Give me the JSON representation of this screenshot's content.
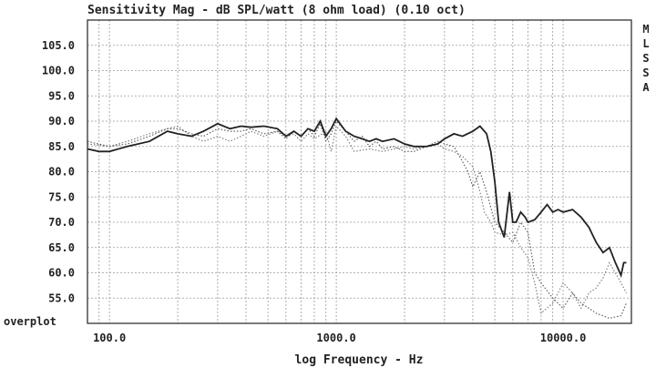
{
  "chart_data": {
    "type": "line",
    "title": "Sensitivity Mag - dB SPL/watt (8 ohm load) (0.10 oct)",
    "xlabel": "log Frequency - Hz",
    "ylabel": "",
    "x_scale": "log",
    "xlim": [
      80,
      20000
    ],
    "ylim": [
      50,
      110
    ],
    "x_ticks": [
      100,
      1000,
      10000
    ],
    "x_tick_labels": [
      "100.0",
      "1000.0",
      "10000.0"
    ],
    "y_ticks": [
      55,
      60,
      65,
      70,
      75,
      80,
      85,
      90,
      95,
      100,
      105
    ],
    "y_tick_labels": [
      "55.0",
      "60.0",
      "65.0",
      "70.0",
      "75.0",
      "80.0",
      "85.0",
      "90.0",
      "95.0",
      "100.0",
      "105.0"
    ],
    "grid": true,
    "side_label": "MLSSA",
    "corner_label": "overplot",
    "series": [
      {
        "style": "solid",
        "color": "#222222",
        "x": [
          80,
          90,
          100,
          120,
          150,
          180,
          200,
          230,
          260,
          300,
          340,
          380,
          420,
          480,
          550,
          600,
          650,
          700,
          750,
          800,
          850,
          900,
          950,
          1000,
          1100,
          1200,
          1300,
          1400,
          1500,
          1600,
          1800,
          2000,
          2200,
          2500,
          2800,
          3000,
          3300,
          3600,
          4000,
          4300,
          4600,
          4800,
          5000,
          5200,
          5500,
          5800,
          6000,
          6200,
          6500,
          6800,
          7000,
          7500,
          8000,
          8500,
          9000,
          9500,
          10000,
          11000,
          12000,
          13000,
          14000,
          15000,
          16000,
          17000,
          18000,
          18500,
          19000
        ],
        "y": [
          84.5,
          84,
          84,
          85,
          86,
          88,
          87.5,
          87,
          88,
          89.5,
          88.5,
          89,
          88.8,
          89,
          88.5,
          87,
          88,
          87,
          88.5,
          88,
          90,
          87,
          88.5,
          90.5,
          88,
          87,
          86.5,
          86,
          86.5,
          86,
          86.5,
          85.5,
          85,
          85,
          85.5,
          86.5,
          87.5,
          87,
          88,
          89,
          87.5,
          84,
          78,
          70,
          67,
          76,
          70,
          70,
          72,
          71,
          70,
          70.5,
          72,
          73.5,
          72,
          72.5,
          72,
          72.5,
          71,
          69,
          66,
          64,
          65,
          62,
          59.5,
          62,
          62
        ]
      },
      {
        "style": "dotted",
        "color": "#555555",
        "x": [
          80,
          100,
          120,
          150,
          180,
          200,
          230,
          260,
          300,
          340,
          380,
          420,
          480,
          550,
          600,
          650,
          700,
          750,
          800,
          850,
          900,
          950,
          1000,
          1100,
          1200,
          1300,
          1400,
          1500,
          1600,
          1800,
          2000,
          2200,
          2500,
          2800,
          3000,
          3300,
          3600,
          3800,
          4000,
          4300,
          4600,
          5000,
          5500,
          6000,
          6500,
          7000,
          7500,
          8000,
          9000,
          10000,
          11000,
          12000,
          14000,
          16000,
          18000,
          19000
        ],
        "y": [
          86,
          85,
          85.5,
          87,
          88.5,
          88.5,
          87.5,
          87,
          88.5,
          88,
          88,
          88.5,
          87.5,
          88,
          86.5,
          88,
          87,
          88.5,
          87,
          89.5,
          86,
          87.5,
          90,
          88,
          86,
          87,
          85,
          86,
          84.5,
          85,
          84,
          84,
          85,
          86,
          85.5,
          85,
          82,
          80,
          77,
          80,
          76,
          70,
          68,
          66,
          70,
          68,
          60,
          58,
          55,
          53,
          56,
          54,
          52,
          51,
          51.5,
          54
        ]
      },
      {
        "style": "dotted",
        "color": "#777777",
        "x": [
          80,
          100,
          120,
          150,
          180,
          200,
          230,
          260,
          300,
          340,
          380,
          420,
          480,
          550,
          600,
          650,
          700,
          750,
          800,
          900,
          950,
          1000,
          1100,
          1200,
          1400,
          1600,
          1800,
          2000,
          2200,
          2500,
          2800,
          3000,
          3300,
          3600,
          4000,
          4300,
          4500,
          4800,
          5000,
          5500,
          6000,
          6500,
          7000,
          7500,
          8000,
          9000,
          10000,
          11000,
          12000,
          13000,
          14000,
          15000,
          16000,
          18000,
          19000
        ],
        "y": [
          85.5,
          85,
          86,
          87.5,
          88.5,
          89,
          87,
          86,
          87,
          86,
          87,
          88,
          87,
          88,
          87,
          87.5,
          86,
          87.5,
          86.5,
          88,
          84,
          89,
          87,
          84,
          84.5,
          84,
          84.5,
          85,
          84.5,
          85,
          85.5,
          84.5,
          84,
          83,
          81,
          76,
          72,
          70,
          68,
          67.5,
          68,
          65,
          63,
          58,
          52,
          54,
          58,
          56,
          53,
          56,
          57,
          59,
          62,
          58,
          56
        ]
      }
    ]
  }
}
